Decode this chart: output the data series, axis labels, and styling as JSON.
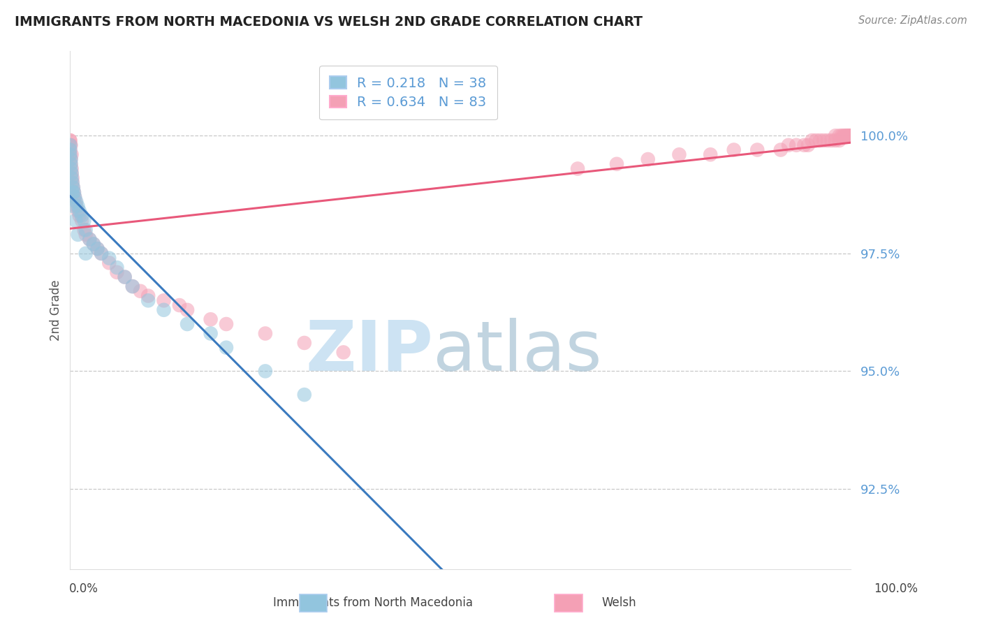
{
  "title": "IMMIGRANTS FROM NORTH MACEDONIA VS WELSH 2ND GRADE CORRELATION CHART",
  "source": "Source: ZipAtlas.com",
  "ylabel": "2nd Grade",
  "ytick_values": [
    0.925,
    0.95,
    0.975,
    1.0
  ],
  "xmin": 0.0,
  "xmax": 1.0,
  "ymin": 0.908,
  "ymax": 1.018,
  "blue_R": 0.218,
  "blue_N": 38,
  "pink_R": 0.634,
  "pink_N": 83,
  "blue_color": "#92c5de",
  "pink_color": "#f4a0b5",
  "blue_line_color": "#3a7abf",
  "pink_line_color": "#e8587a",
  "legend_label_blue": "Immigrants from North Macedonia",
  "legend_label_pink": "Welsh",
  "watermark_zip": "ZIP",
  "watermark_atlas": "atlas",
  "background_color": "#ffffff",
  "grid_color": "#c8c8c8",
  "tick_color": "#5b9bd5",
  "blue_x": [
    0.0,
    0.0,
    0.001,
    0.001,
    0.002,
    0.003,
    0.004,
    0.005,
    0.006,
    0.008,
    0.01,
    0.012,
    0.015,
    0.018,
    0.02,
    0.025,
    0.03,
    0.035,
    0.04,
    0.05,
    0.06,
    0.07,
    0.08,
    0.1,
    0.12,
    0.15,
    0.18,
    0.2,
    0.25,
    0.3,
    0.0,
    0.001,
    0.002,
    0.003,
    0.005,
    0.007,
    0.01,
    0.02
  ],
  "blue_y": [
    0.998,
    0.996,
    0.994,
    0.993,
    0.991,
    0.99,
    0.989,
    0.988,
    0.987,
    0.986,
    0.985,
    0.984,
    0.983,
    0.982,
    0.98,
    0.978,
    0.977,
    0.976,
    0.975,
    0.974,
    0.972,
    0.97,
    0.968,
    0.965,
    0.963,
    0.96,
    0.958,
    0.955,
    0.95,
    0.945,
    0.997,
    0.995,
    0.992,
    0.988,
    0.985,
    0.982,
    0.979,
    0.975
  ],
  "pink_x_cluster0": [
    0.0,
    0.0,
    0.0,
    0.0,
    0.001,
    0.001,
    0.002,
    0.002,
    0.003,
    0.003,
    0.004,
    0.005,
    0.006,
    0.007,
    0.008,
    0.01,
    0.012,
    0.015,
    0.018,
    0.02,
    0.025,
    0.03,
    0.035,
    0.04,
    0.05,
    0.06,
    0.07,
    0.08,
    0.09,
    0.1,
    0.12,
    0.14,
    0.15,
    0.18,
    0.2,
    0.25,
    0.3,
    0.35,
    0.0,
    0.001,
    0.002
  ],
  "pink_y_cluster0": [
    0.999,
    0.998,
    0.997,
    0.996,
    0.995,
    0.994,
    0.993,
    0.992,
    0.991,
    0.99,
    0.989,
    0.988,
    0.987,
    0.986,
    0.985,
    0.984,
    0.983,
    0.982,
    0.98,
    0.979,
    0.978,
    0.977,
    0.976,
    0.975,
    0.973,
    0.971,
    0.97,
    0.968,
    0.967,
    0.966,
    0.965,
    0.964,
    0.963,
    0.961,
    0.96,
    0.958,
    0.956,
    0.954,
    0.999,
    0.998,
    0.996
  ],
  "pink_x_cluster1": [
    0.98,
    0.985,
    0.988,
    0.99,
    0.992,
    0.994,
    0.995,
    0.996,
    0.997,
    0.998,
    0.999,
    1.0,
    1.0,
    1.0,
    1.0,
    1.0,
    1.0,
    1.0,
    1.0,
    1.0,
    1.0,
    1.0,
    0.97,
    0.975,
    0.98,
    0.985,
    0.96,
    0.965,
    0.955,
    0.95,
    0.945,
    0.94,
    0.93,
    0.92,
    0.91,
    0.88,
    0.85,
    0.82,
    0.78,
    0.74,
    0.7,
    0.65
  ],
  "pink_y_cluster1": [
    1.0,
    1.0,
    1.0,
    1.0,
    1.0,
    1.0,
    1.0,
    1.0,
    1.0,
    1.0,
    1.0,
    1.0,
    1.0,
    1.0,
    1.0,
    1.0,
    1.0,
    1.0,
    1.0,
    1.0,
    1.0,
    1.0,
    0.999,
    0.999,
    0.999,
    0.999,
    0.999,
    0.999,
    0.999,
    0.999,
    0.998,
    0.998,
    0.998,
    0.998,
    0.997,
    0.997,
    0.997,
    0.996,
    0.996,
    0.995,
    0.994,
    0.993
  ]
}
